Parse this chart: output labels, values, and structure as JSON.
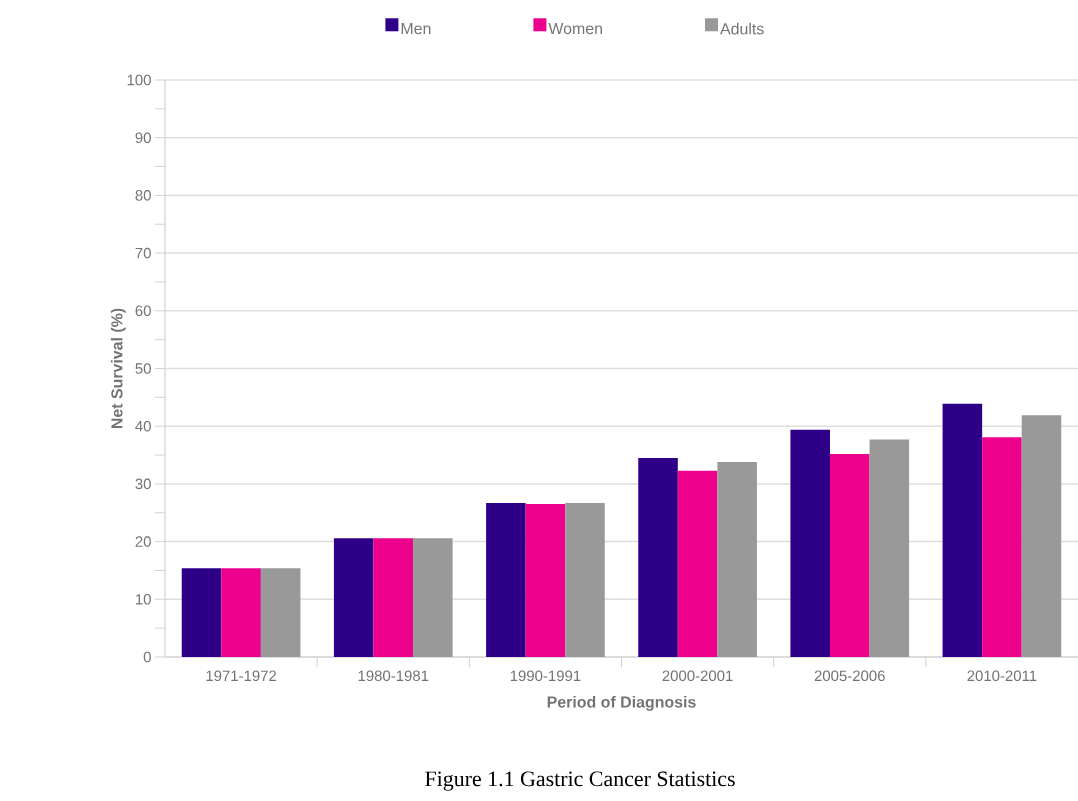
{
  "chart_data": {
    "type": "bar",
    "xlabel": "Period of Diagnosis",
    "ylabel": "Net Survival (%)",
    "categories": [
      "1971-1972",
      "1980-1981",
      "1990-1991",
      "2000-2001",
      "2005-2006",
      "2010-2011"
    ],
    "series": [
      {
        "name": "Men",
        "color": "#2e0087",
        "values": [
          15.4,
          20.6,
          26.7,
          34.5,
          39.4,
          43.9
        ]
      },
      {
        "name": "Women",
        "color": "#ec008c",
        "values": [
          15.4,
          20.6,
          26.5,
          32.3,
          35.2,
          38.1
        ]
      },
      {
        "name": "Adults",
        "color": "#999999",
        "values": [
          15.4,
          20.6,
          26.7,
          33.8,
          37.7,
          41.9
        ]
      }
    ],
    "ylim": [
      0,
      100
    ],
    "yticks": [
      0,
      10,
      20,
      30,
      40,
      50,
      60,
      70,
      80,
      90,
      100
    ],
    "grid": "y",
    "legend": "top",
    "annotations": [
      "Figure 1.1 Gastric Cancer Statistics"
    ]
  }
}
